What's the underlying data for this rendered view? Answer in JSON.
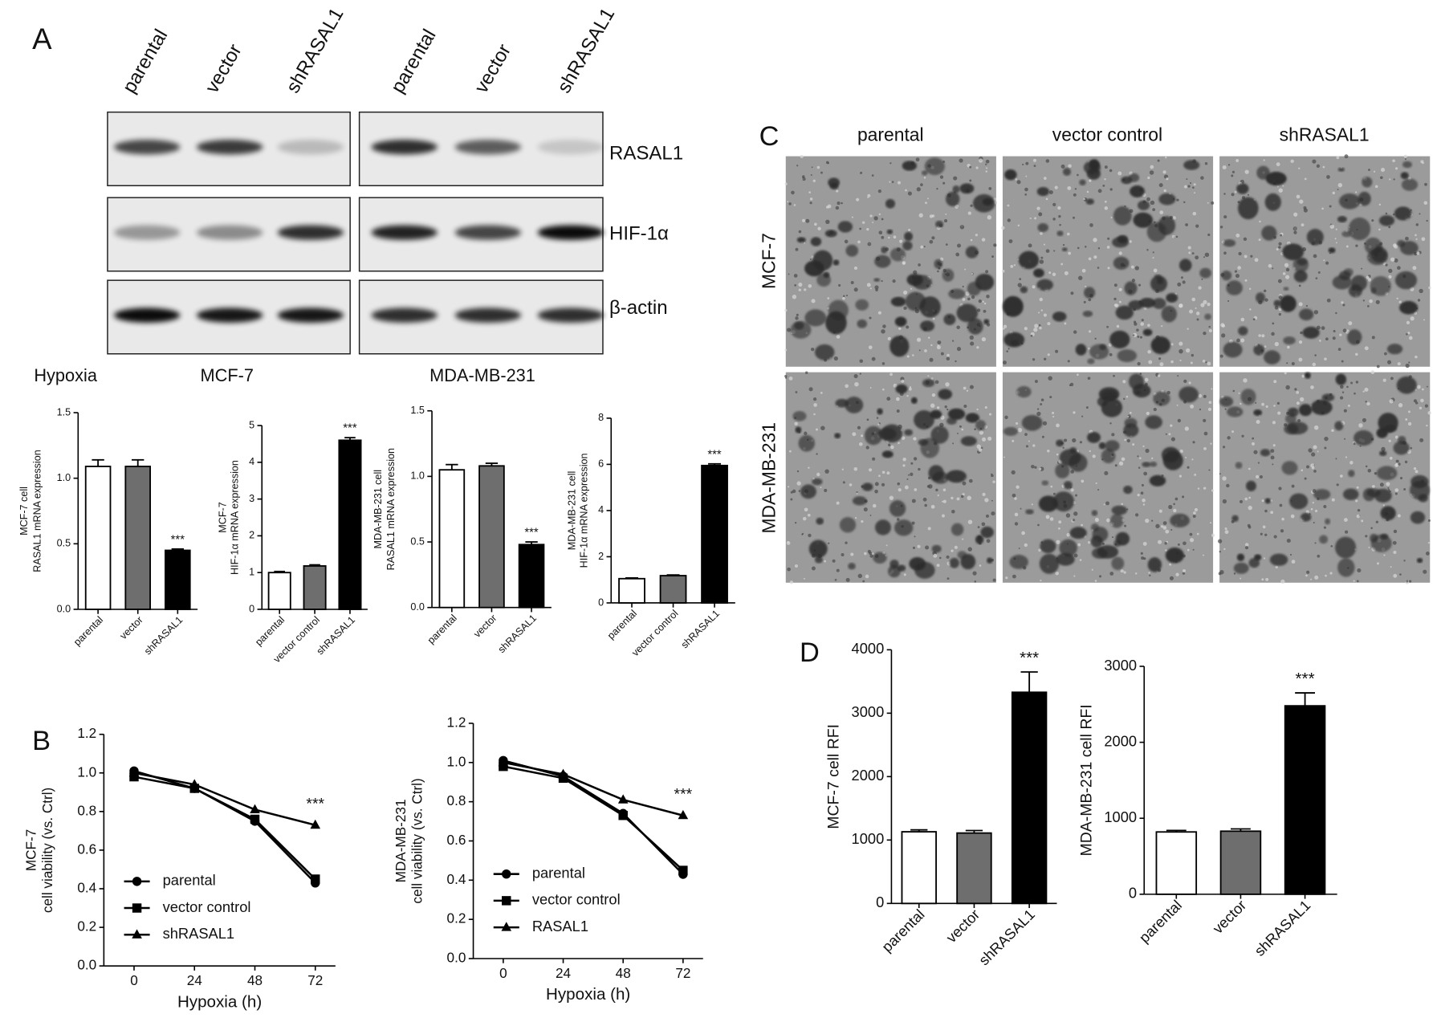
{
  "panels": [
    "A",
    "B",
    "C",
    "D"
  ],
  "blot": {
    "lanes": [
      "parental",
      "vector",
      "shRASAL1",
      "parental",
      "vector",
      "shRASAL1"
    ],
    "proteins": [
      "RASAL1",
      "HIF-1α",
      "β-actin"
    ],
    "condition": "Hypoxia",
    "cell_lines": [
      "MCF-7",
      "MDA-MB-231"
    ]
  },
  "micrographs": {
    "columns": [
      "parental",
      "vector control",
      "shRASAL1"
    ],
    "rows": [
      "MCF-7",
      "MDA-MB-231"
    ]
  },
  "chart_data": [
    {
      "type": "bar",
      "ylabel": [
        "MCF-7 cell",
        "RASAL1 mRNA expression"
      ],
      "categories": [
        "parental",
        "vector",
        "shRASAL1"
      ],
      "values": [
        1.09,
        1.09,
        0.45
      ],
      "errors": [
        0.05,
        0.05,
        0.01
      ],
      "colors": [
        "#ffffff",
        "#6e6e6e",
        "#000000"
      ],
      "ylim": [
        0,
        1.5
      ],
      "yticks": [
        {
          "value": 0,
          "label": "0.0"
        },
        0.5,
        {
          "value": 1,
          "label": "1.0"
        },
        1.5
      ],
      "annotation": "***"
    },
    {
      "type": "bar",
      "ylabel": [
        "MCF-7",
        "HIF-1α mRNA expression"
      ],
      "categories": [
        "parental",
        "vector control",
        "shRASAL1"
      ],
      "values": [
        1.0,
        1.18,
        4.6
      ],
      "errors": [
        0.03,
        0.03,
        0.07
      ],
      "colors": [
        "#ffffff",
        "#6e6e6e",
        "#000000"
      ],
      "ylim": [
        0,
        5
      ],
      "yticks": [
        0,
        1,
        2,
        3,
        4,
        5
      ],
      "annotation": "***"
    },
    {
      "type": "bar",
      "ylabel": [
        "MDA-MB-231 cell",
        "RASAL1 mRNA expression"
      ],
      "categories": [
        "parental",
        "vector",
        "shRASAL1"
      ],
      "values": [
        1.05,
        1.08,
        0.48
      ],
      "errors": [
        0.04,
        0.02,
        0.02
      ],
      "colors": [
        "#ffffff",
        "#6e6e6e",
        "#000000"
      ],
      "ylim": [
        0,
        1.5
      ],
      "yticks": [
        {
          "value": 0,
          "label": "0.0"
        },
        0.5,
        {
          "value": 1,
          "label": "1.0"
        },
        1.5
      ],
      "annotation": "***"
    },
    {
      "type": "bar",
      "ylabel": [
        "MDA-MB-231 cell",
        "HIF-1α mRNA expression"
      ],
      "categories": [
        "parental",
        "vector control",
        "shRASAL1"
      ],
      "values": [
        1.05,
        1.18,
        5.95
      ],
      "errors": [
        0.03,
        0.03,
        0.07
      ],
      "colors": [
        "#ffffff",
        "#6e6e6e",
        "#000000"
      ],
      "ylim": [
        0,
        8
      ],
      "yticks": [
        0,
        2,
        4,
        6,
        8
      ],
      "annotation": "***"
    },
    {
      "type": "line",
      "ylabel": [
        "MCF-7",
        "cell viability (vs. Ctrl)"
      ],
      "xlabel": "Hypoxia (h)",
      "x": [
        0,
        24,
        48,
        72
      ],
      "xlim": [
        -12,
        80
      ],
      "xticks": [
        0,
        24,
        48,
        72
      ],
      "ylim": [
        0,
        1.2
      ],
      "yticks": [
        {
          "value": 0,
          "label": "0.0"
        },
        0.2,
        0.4,
        0.6,
        0.8,
        {
          "value": 1,
          "label": "1.0"
        },
        1.2
      ],
      "legend": "lower left",
      "annotation": "***",
      "series": [
        {
          "name": "parental",
          "color": "#000000",
          "marker": "circle",
          "values": [
            1.01,
            0.92,
            0.75,
            0.43
          ]
        },
        {
          "name": "vector control",
          "color": "#000000",
          "marker": "square",
          "values": [
            0.98,
            0.92,
            0.76,
            0.45
          ]
        },
        {
          "name": "shRASAL1",
          "color": "#000000",
          "marker": "triangle",
          "values": [
            1.0,
            0.94,
            0.81,
            0.73
          ]
        }
      ]
    },
    {
      "type": "line",
      "ylabel": [
        "MDA-MB-231",
        "cell viability (vs. Ctrl)"
      ],
      "xlabel": "Hypoxia (h)",
      "x": [
        0,
        24,
        48,
        72
      ],
      "xlim": [
        -12,
        80
      ],
      "xticks": [
        0,
        24,
        48,
        72
      ],
      "ylim": [
        0,
        1.2
      ],
      "yticks": [
        {
          "value": 0,
          "label": "0.0"
        },
        0.2,
        0.4,
        0.6,
        0.8,
        {
          "value": 1,
          "label": "1.0"
        },
        1.2
      ],
      "legend": "lower left",
      "annotation": "***",
      "series": [
        {
          "name": "parental",
          "color": "#000000",
          "marker": "circle",
          "values": [
            1.01,
            0.93,
            0.74,
            0.43
          ]
        },
        {
          "name": "vector control",
          "color": "#000000",
          "marker": "square",
          "values": [
            0.98,
            0.92,
            0.73,
            0.45
          ]
        },
        {
          "name": "RASAL1",
          "color": "#000000",
          "marker": "triangle",
          "values": [
            1.0,
            0.94,
            0.81,
            0.73
          ]
        }
      ]
    },
    {
      "type": "bar",
      "ylabel": "MCF-7 cell RFI",
      "categories": [
        "parental",
        "vector",
        "shRASAL1"
      ],
      "values": [
        1130,
        1110,
        3330
      ],
      "errors": [
        30,
        40,
        320
      ],
      "colors": [
        "#ffffff",
        "#6e6e6e",
        "#000000"
      ],
      "ylim": [
        0,
        4000
      ],
      "yticks": [
        0,
        1000,
        2000,
        3000,
        4000
      ],
      "annotation": "***"
    },
    {
      "type": "bar",
      "ylabel": "MDA-MB-231 cell RFI",
      "categories": [
        "parental",
        "vector",
        "shRASAL1"
      ],
      "values": [
        820,
        830,
        2480
      ],
      "errors": [
        20,
        30,
        170
      ],
      "colors": [
        "#ffffff",
        "#6e6e6e",
        "#000000"
      ],
      "ylim": [
        0,
        3000
      ],
      "yticks": [
        0,
        1000,
        2000,
        3000
      ],
      "annotation": "***"
    }
  ]
}
